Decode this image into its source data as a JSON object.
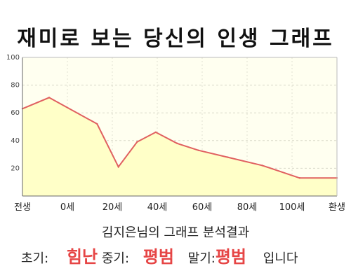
{
  "title": "재미로 보는 당신의 인생 그래프",
  "subtitle": "김지은님의 그래프 분석결과",
  "result": {
    "early_label": "초기:",
    "early_value": "힘난",
    "mid_label": "중기:",
    "mid_value": "평범",
    "late_label": "말기:",
    "late_value": "평범",
    "suffix": "입니다"
  },
  "colors": {
    "line": "#e06060",
    "fill": "#ffffc8",
    "highlight": "#e64545"
  },
  "chart_data": {
    "type": "area",
    "x": [
      -10,
      0,
      18,
      26,
      33,
      40,
      48,
      56,
      67,
      80,
      94,
      108
    ],
    "values": [
      63,
      71,
      52,
      21,
      39,
      46,
      38,
      33,
      28,
      22,
      13,
      13
    ],
    "x_tick_labels": [
      "전생",
      "0세",
      "20세",
      "40세",
      "60세",
      "80세",
      "100세",
      "환생"
    ],
    "y_ticks": [
      20,
      40,
      60,
      80,
      100
    ],
    "ylim": [
      0,
      100
    ],
    "grid": true,
    "legend": "none"
  }
}
